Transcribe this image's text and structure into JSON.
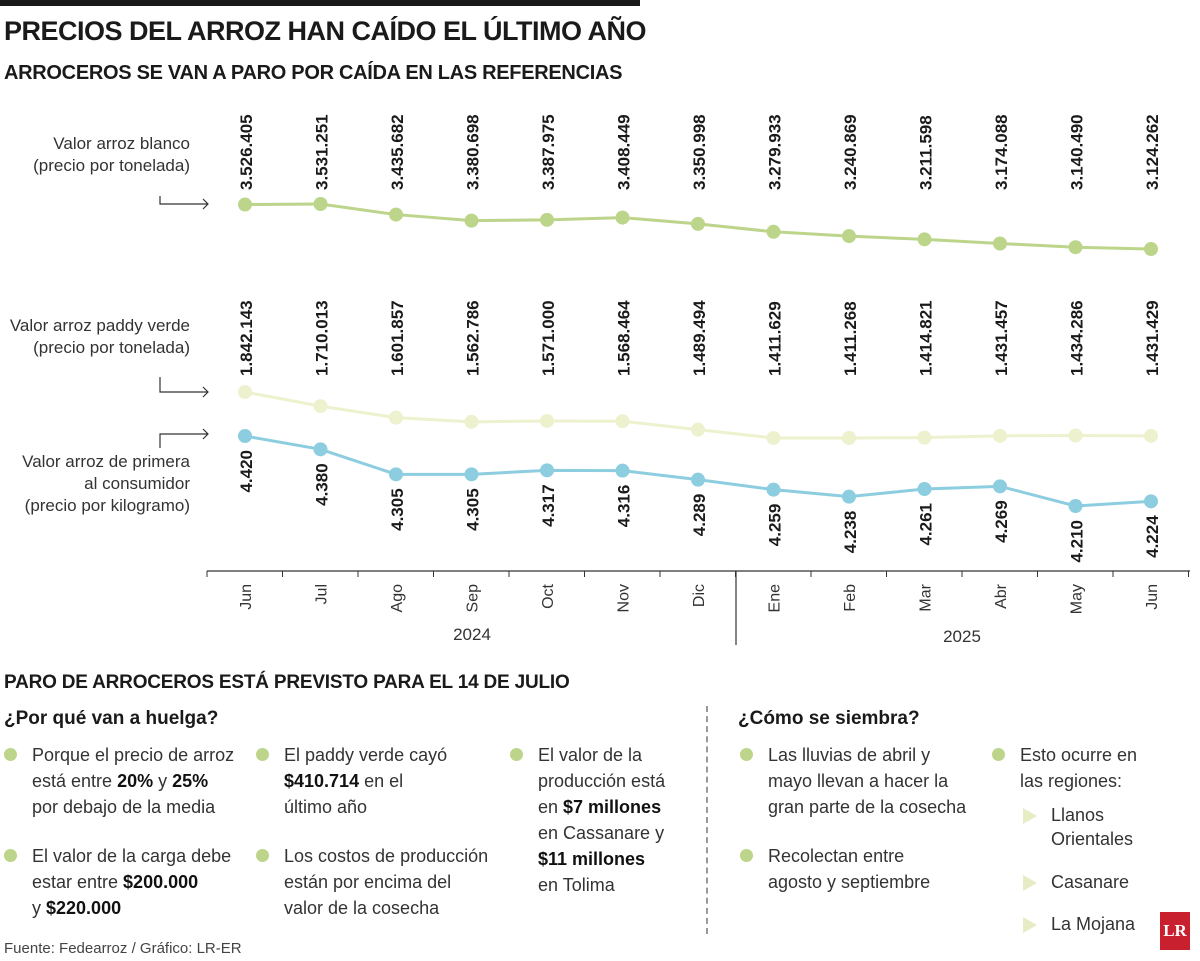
{
  "title": "PRECIOS DEL ARROZ HAN CAÍDO EL ÚLTIMO AÑO",
  "subtitle": "ARROCEROS SE VAN A PARO POR CAÍDA EN LAS REFERENCIAS",
  "series_labels": {
    "blanco": [
      "Valor arroz blanco",
      "(precio por tonelada)"
    ],
    "paddy": [
      "Valor arroz paddy verde",
      "(precio por tonelada)"
    ],
    "primera": [
      "Valor arroz de primera",
      "al consumidor",
      "(precio por kilogramo)"
    ]
  },
  "chart_data": {
    "type": "line",
    "title": "PRECIOS DEL ARROZ HAN CAÍDO EL ÚLTIMO AÑO",
    "categories": [
      "Jun",
      "Jul",
      "Ago",
      "Sep",
      "Oct",
      "Nov",
      "Dic",
      "Ene",
      "Feb",
      "Mar",
      "Abr",
      "May",
      "Jun"
    ],
    "year_groups": [
      {
        "label": "2024",
        "months": [
          "Jun",
          "Jul",
          "Ago",
          "Sep",
          "Oct",
          "Nov",
          "Dic"
        ]
      },
      {
        "label": "2025",
        "months": [
          "Ene",
          "Feb",
          "Mar",
          "Abr",
          "May",
          "Jun"
        ]
      }
    ],
    "series": [
      {
        "name": "Valor arroz blanco (precio por tonelada)",
        "color": "#bcd58a",
        "values": [
          3526405,
          3531251,
          3435682,
          3380698,
          3387975,
          3408449,
          3350998,
          3279933,
          3240869,
          3211598,
          3174088,
          3140490,
          3124262
        ],
        "labels": [
          "3.526.405",
          "3.531.251",
          "3.435.682",
          "3.380.698",
          "3.387.975",
          "3.408.449",
          "3.350.998",
          "3.279.933",
          "3.240.869",
          "3.211.598",
          "3.174.088",
          "3.140.490",
          "3.124.262"
        ]
      },
      {
        "name": "Valor arroz paddy verde (precio por tonelada)",
        "color": "#eef1cd",
        "values": [
          1842143,
          1710013,
          1601857,
          1562786,
          1571000,
          1568464,
          1489494,
          1411629,
          1411268,
          1414821,
          1431457,
          1434286,
          1431429
        ],
        "labels": [
          "1.842.143",
          "1.710.013",
          "1.601.857",
          "1.562.786",
          "1.571.000",
          "1.568.464",
          "1.489.494",
          "1.411.629",
          "1.411.268",
          "1.414.821",
          "1.431.457",
          "1.434.286",
          "1.431.429"
        ]
      },
      {
        "name": "Valor arroz de primera al consumidor (precio por kilogramo)",
        "color": "#8ccde0",
        "values": [
          4420,
          4380,
          4305,
          4305,
          4317,
          4316,
          4289,
          4259,
          4238,
          4261,
          4269,
          4210,
          4224
        ],
        "labels": [
          "4.420",
          "4.380",
          "4.305",
          "4.305",
          "4.317",
          "4.316",
          "4.289",
          "4.259",
          "4.238",
          "4.261",
          "4.269",
          "4.210",
          "4.224"
        ]
      }
    ]
  },
  "section_title": "PARO DE ARROCEROS ESTÁ PREVISTO PARA EL 14 DE JULIO",
  "huelga": {
    "title": "¿Por qué van a huelga?",
    "b1": {
      "t1": "Porque el precio de arroz",
      "t2": "está entre ",
      "v1": "20%",
      "t3": " y ",
      "v2": "25%",
      "t4": "por debajo de la media"
    },
    "b2": {
      "t1": "El valor de la carga debe",
      "t2": "estar entre ",
      "v1": "$200.000",
      "t3": "y ",
      "v2": "$220.000"
    },
    "b3": {
      "t1": "El paddy verde cayó",
      "v1": "$410.714",
      "t2": " en el",
      "t3": "último año"
    },
    "b4": {
      "t1": "Los costos de producción",
      "t2": "están por encima del",
      "t3": "valor de la cosecha"
    },
    "b5": {
      "t1": "El valor de la",
      "t2": "producción está",
      "t3": "en ",
      "v1": "$7 millones",
      "t4": "en Cassanare y",
      "v2": "$11 millones",
      "t5": "en Tolima"
    }
  },
  "siembra": {
    "title": "¿Cómo se siembra?",
    "b1": {
      "t1": "Las lluvias de abril y",
      "t2": "mayo llevan a hacer la",
      "t3": "gran parte de la cosecha"
    },
    "b2": {
      "t1": "Recolectan entre",
      "t2": "agosto y septiembre"
    },
    "b3": {
      "t1": "Esto ocurre en",
      "t2": "las regiones:"
    },
    "regions": [
      "Llanos",
      "Orientales",
      "Casanare",
      "La Mojana"
    ]
  },
  "footer": "Fuente: Fedearroz / Gráfico: LR-ER",
  "logo_text": "LR"
}
